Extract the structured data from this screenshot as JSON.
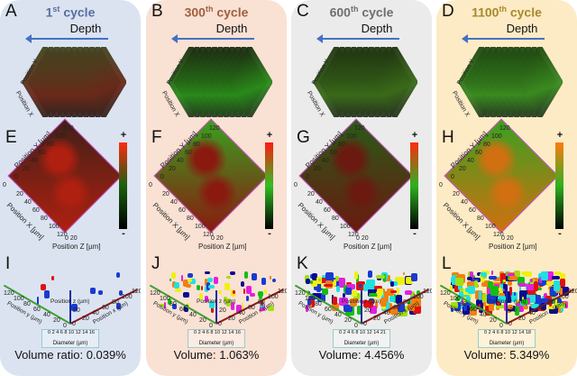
{
  "panels": [
    {
      "letters": [
        "A",
        "E",
        "I"
      ],
      "cycle_num": "1",
      "cycle_sup": "st",
      "cycle_word": " cycle",
      "title_color": "#5b6f9e",
      "bg": "#dbe3f1",
      "stack_colors": [
        "#3a4a22",
        "#6a2a1a"
      ],
      "cube_colors": [
        "#402018",
        "#b02010"
      ],
      "colorbar": [
        "#ff2a10",
        "#1a6010",
        "#000000"
      ],
      "legend_ticks": "0 2 4 6 8 10 12 14 16",
      "volume": "Volume ratio: 0.039%",
      "blob_density": "low"
    },
    {
      "letters": [
        "B",
        "F",
        "J"
      ],
      "cycle_num": "300",
      "cycle_sup": "th",
      "cycle_word": " cycle",
      "title_color": "#a0603e",
      "bg": "#f9e1d4",
      "stack_colors": [
        "#1a1a10",
        "#2a8a1a"
      ],
      "cube_colors": [
        "#3aa020",
        "#8a1a10"
      ],
      "colorbar": [
        "#ff1a10",
        "#30c020",
        "#000000"
      ],
      "legend_ticks": "0 2 4 6 8 10 12 14 16",
      "volume": "Volume: 1.063%",
      "blob_density": "medium"
    },
    {
      "letters": [
        "C",
        "G",
        "K"
      ],
      "cycle_num": "600",
      "cycle_sup": "th",
      "cycle_word": " cycle",
      "title_color": "#6e6e6e",
      "bg": "#ebebeb",
      "stack_colors": [
        "#1a2a10",
        "#3a6a1a"
      ],
      "cube_colors": [
        "#2a5a18",
        "#6a1a10"
      ],
      "colorbar": [
        "#ff2a10",
        "#30b020",
        "#000000"
      ],
      "legend_ticks": "0 2 4 6 8 10 12 14 21",
      "volume": "Volume: 4.456%",
      "blob_density": "high"
    },
    {
      "letters": [
        "D",
        "H",
        "L"
      ],
      "cycle_num": "1100",
      "cycle_sup": "th",
      "cycle_word": " cycle",
      "title_color": "#a8892a",
      "bg": "#fdebc6",
      "stack_colors": [
        "#1a3a10",
        "#3a8a20"
      ],
      "cube_colors": [
        "#3aa020",
        "#d07010"
      ],
      "colorbar": [
        "#ff7a10",
        "#30b020",
        "#000000"
      ],
      "legend_ticks": "0 2 4 6 8 10 12 14 18",
      "volume": "Volume: 5.349%",
      "blob_density": "very-high"
    }
  ],
  "shared": {
    "depth": "Depth",
    "stack_y": "Position Y",
    "stack_x": "Position X",
    "cube_y": "Position Y [µm]",
    "cube_x": "Position X [µm]",
    "cube_z": "Position Z [µm]",
    "cube_y_ticks": [
      "0",
      "20",
      "40",
      "60",
      "80",
      "100",
      "120"
    ],
    "cube_x_ticks": [
      "20",
      "40",
      "60",
      "80",
      "100",
      "120"
    ],
    "cube_x_zero": "0",
    "cube_z_ticks": "0 20",
    "plus": "+",
    "minus": "-",
    "ax_y": "Position y (µm)",
    "ax_x": "Position x (µm)",
    "ax_z": "Position z (µm)",
    "ax_y_ticks": [
      "120",
      "100",
      "80",
      "60",
      "40",
      "20",
      "0"
    ],
    "ax_x_ticks": [
      "0",
      "20",
      "40",
      "60",
      "80",
      "100",
      "120"
    ],
    "ax_z_tick": "20",
    "legend_title": "Diameter (µm)",
    "legend_colors": [
      "#1a3ad0",
      "#0a0a90",
      "#e01010",
      "#10c010",
      "#a0e010",
      "#f0f010",
      "#20e0e0",
      "#f08010",
      "#e020e0"
    ]
  }
}
